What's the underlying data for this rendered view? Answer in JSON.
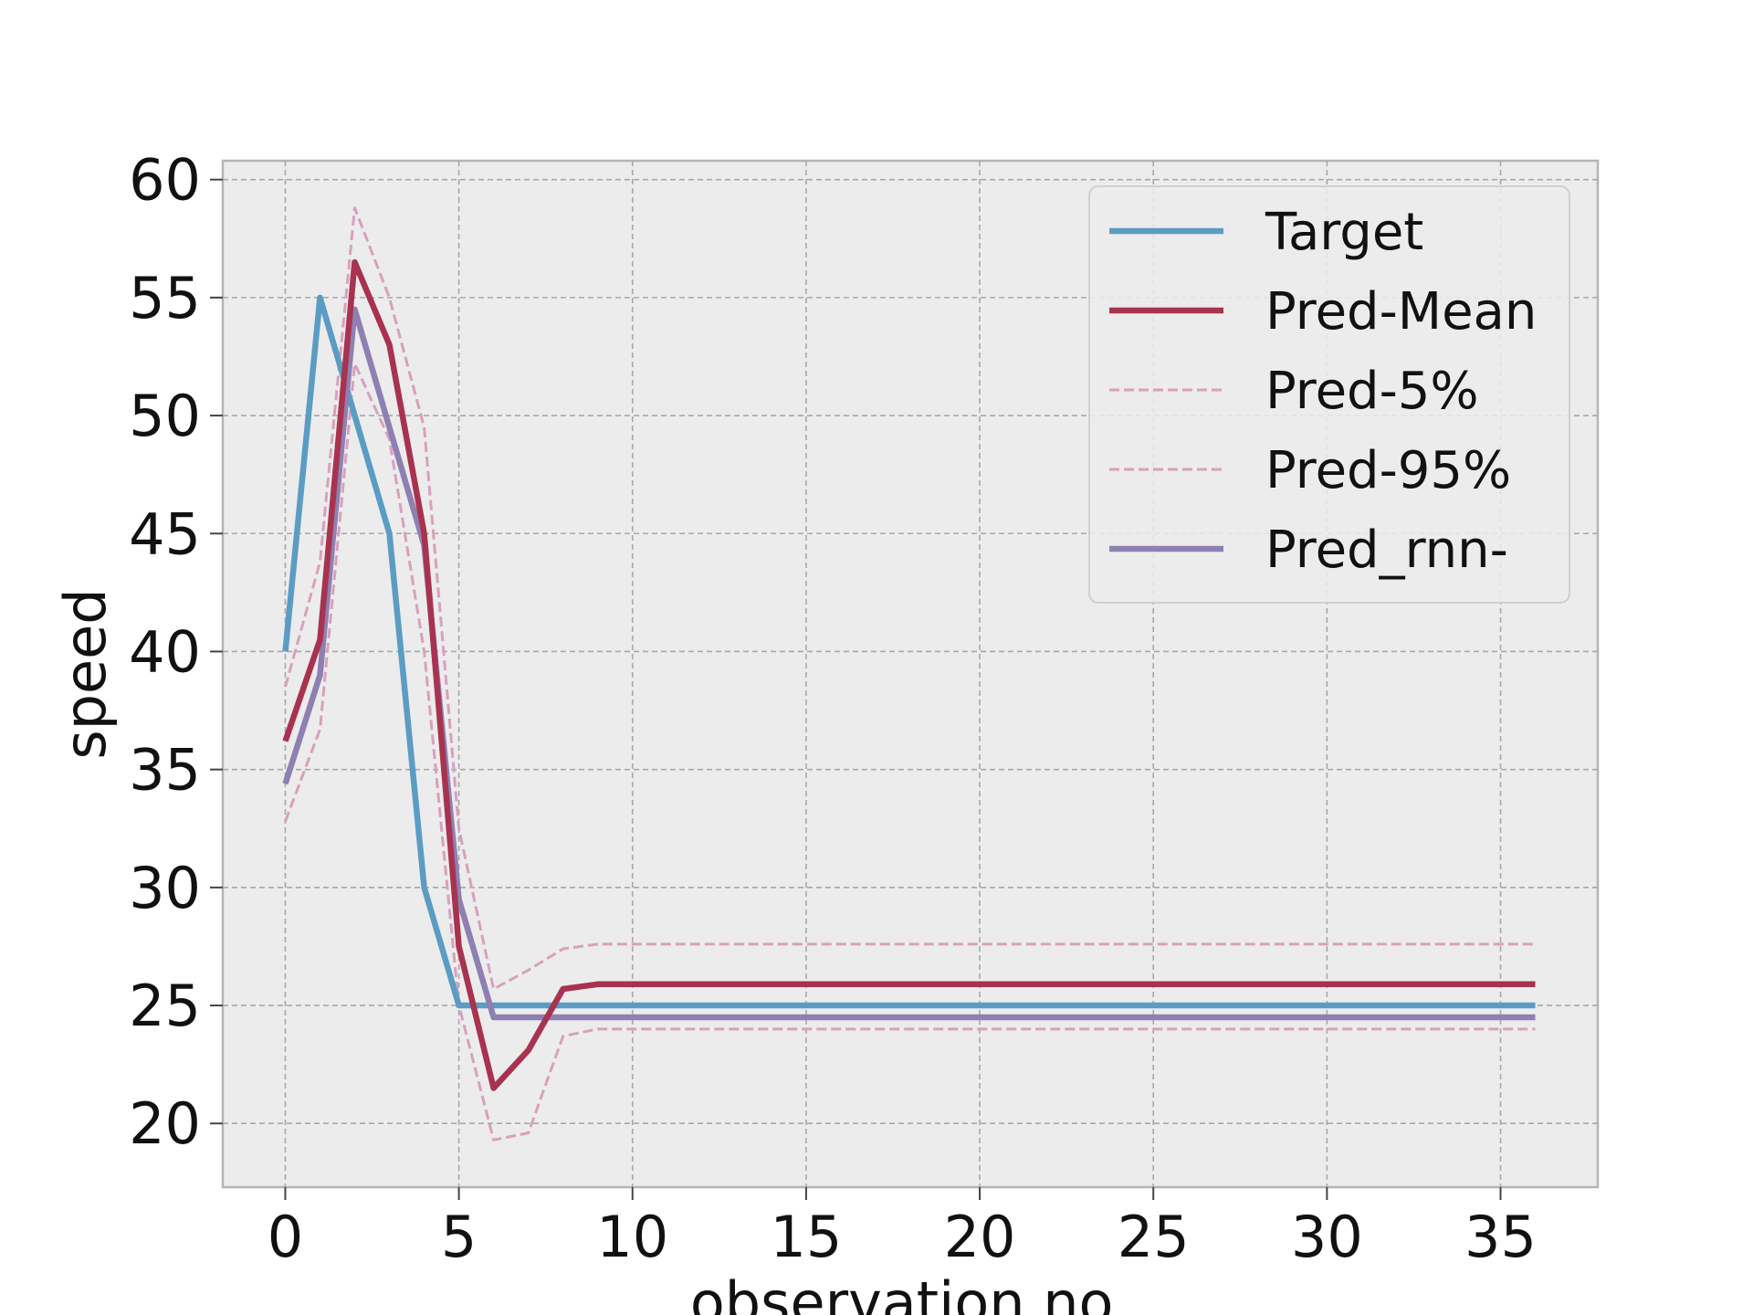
{
  "chart_data": {
    "type": "line",
    "xlabel": "observation no.",
    "ylabel": "speed",
    "xlim": [
      -1.8,
      37.8
    ],
    "ylim": [
      17.3,
      60.8
    ],
    "xticks": [
      0,
      5,
      10,
      15,
      20,
      25,
      30,
      35
    ],
    "yticks": [
      20,
      25,
      30,
      35,
      40,
      45,
      50,
      55,
      60
    ],
    "grid": true,
    "legend_position": "top-right",
    "x": [
      0,
      1,
      2,
      3,
      4,
      5,
      6,
      7,
      8,
      9,
      10,
      11,
      12,
      13,
      14,
      15,
      16,
      17,
      18,
      19,
      20,
      21,
      22,
      23,
      24,
      25,
      26,
      27,
      28,
      29,
      30,
      31,
      32,
      33,
      34,
      35,
      36
    ],
    "series": [
      {
        "name": "Target",
        "color": "#5b9cc4",
        "style": "solid",
        "values": [
          40,
          55,
          50,
          45,
          30,
          25,
          25,
          25,
          25,
          25,
          25,
          25,
          25,
          25,
          25,
          25,
          25,
          25,
          25,
          25,
          25,
          25,
          25,
          25,
          25,
          25,
          25,
          25,
          25,
          25,
          25,
          25,
          25,
          25,
          25,
          25,
          25
        ]
      },
      {
        "name": "Pred-Mean",
        "color": "#a8334f",
        "style": "solid",
        "values": [
          36.2,
          40.5,
          56.5,
          53,
          45,
          27.5,
          21.5,
          23.1,
          25.7,
          25.9,
          25.9,
          25.9,
          25.9,
          25.9,
          25.9,
          25.9,
          25.9,
          25.9,
          25.9,
          25.9,
          25.9,
          25.9,
          25.9,
          25.9,
          25.9,
          25.9,
          25.9,
          25.9,
          25.9,
          25.9,
          25.9,
          25.9,
          25.9,
          25.9,
          25.9,
          25.9,
          25.9
        ]
      },
      {
        "name": "Pred-5%",
        "color": "#d9a0bd",
        "style": "dashed",
        "values": [
          32.8,
          36.7,
          52.2,
          49,
          40,
          25,
          19.3,
          19.6,
          23.7,
          24,
          24,
          24,
          24,
          24,
          24,
          24,
          24,
          24,
          24,
          24,
          24,
          24,
          24,
          24,
          24,
          24,
          24,
          24,
          24,
          24,
          24,
          24,
          24,
          24,
          24,
          24,
          24
        ]
      },
      {
        "name": "Pred-95%",
        "color": "#d9a0bd",
        "style": "dashed",
        "values": [
          38.5,
          43.8,
          58.8,
          55,
          49.5,
          32.5,
          25.7,
          26.5,
          27.4,
          27.6,
          27.6,
          27.6,
          27.6,
          27.6,
          27.6,
          27.6,
          27.6,
          27.6,
          27.6,
          27.6,
          27.6,
          27.6,
          27.6,
          27.6,
          27.6,
          27.6,
          27.6,
          27.6,
          27.6,
          27.6,
          27.6,
          27.6,
          27.6,
          27.6,
          27.6,
          27.6,
          27.6
        ]
      },
      {
        "name": "Pred_rnn-",
        "color": "#8e80b2",
        "style": "solid",
        "values": [
          34.4,
          39,
          54.5,
          49.5,
          44.5,
          29.5,
          24.5,
          24.5,
          24.5,
          24.5,
          24.5,
          24.5,
          24.5,
          24.5,
          24.5,
          24.5,
          24.5,
          24.5,
          24.5,
          24.5,
          24.5,
          24.5,
          24.5,
          24.5,
          24.5,
          24.5,
          24.5,
          24.5,
          24.5,
          24.5,
          24.5,
          24.5,
          24.5,
          24.5,
          24.5,
          24.5,
          24.5
        ]
      }
    ]
  }
}
